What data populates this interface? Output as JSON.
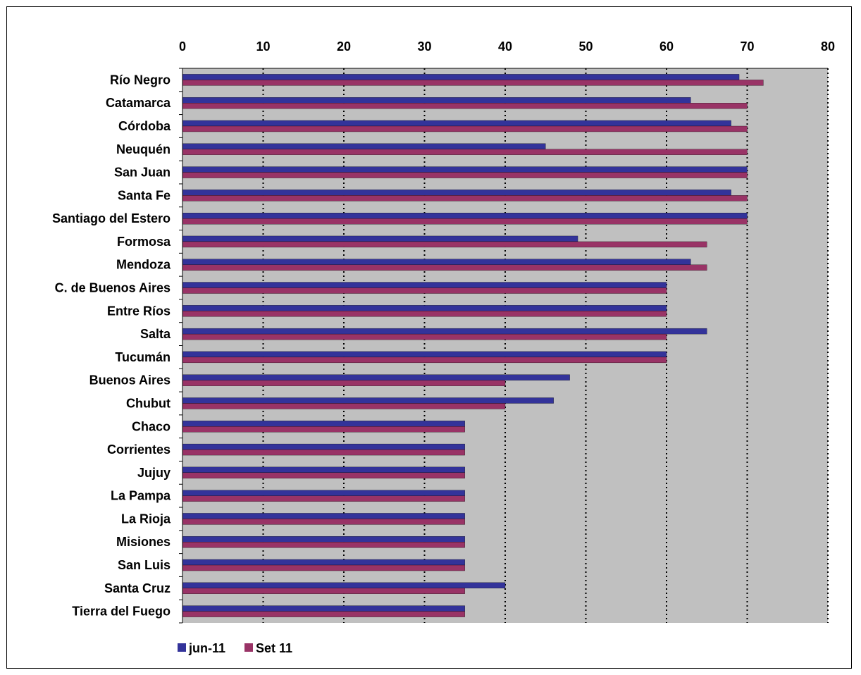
{
  "chart_data": {
    "type": "bar",
    "orientation": "horizontal",
    "title": "",
    "xlabel": "",
    "ylabel": "",
    "xlim": [
      0,
      80
    ],
    "x_ticks": [
      0,
      10,
      20,
      30,
      40,
      50,
      60,
      70,
      80
    ],
    "x_axis_position": "top",
    "grid": "dotted vertical",
    "legend": "bottom-left",
    "categories": [
      "Río Negro",
      "Catamarca",
      "Córdoba",
      "Neuquén",
      "San Juan",
      "Santa Fe",
      "Santiago del Estero",
      "Formosa",
      "Mendoza",
      "C. de Buenos Aires",
      "Entre Ríos",
      "Salta",
      "Tucumán",
      "Buenos Aires",
      "Chubut",
      "Chaco",
      "Corrientes",
      "Jujuy",
      "La Pampa",
      "La Rioja",
      "Misiones",
      "San Luis",
      "Santa Cruz",
      "Tierra del Fuego"
    ],
    "series": [
      {
        "name": "jun-11",
        "color": "#33339a",
        "values": [
          69,
          63,
          68,
          45,
          70,
          68,
          70,
          49,
          63,
          60,
          60,
          65,
          60,
          48,
          46,
          35,
          35,
          35,
          35,
          35,
          35,
          35,
          40,
          35
        ]
      },
      {
        "name": "Set 11",
        "color": "#993366",
        "values": [
          72,
          70,
          70,
          70,
          70,
          70,
          70,
          65,
          65,
          60,
          60,
          60,
          60,
          40,
          40,
          35,
          35,
          35,
          35,
          35,
          35,
          35,
          35,
          35
        ]
      }
    ],
    "colors": {
      "plot_bg": "#c0c0c0",
      "grid": "#000000"
    }
  }
}
